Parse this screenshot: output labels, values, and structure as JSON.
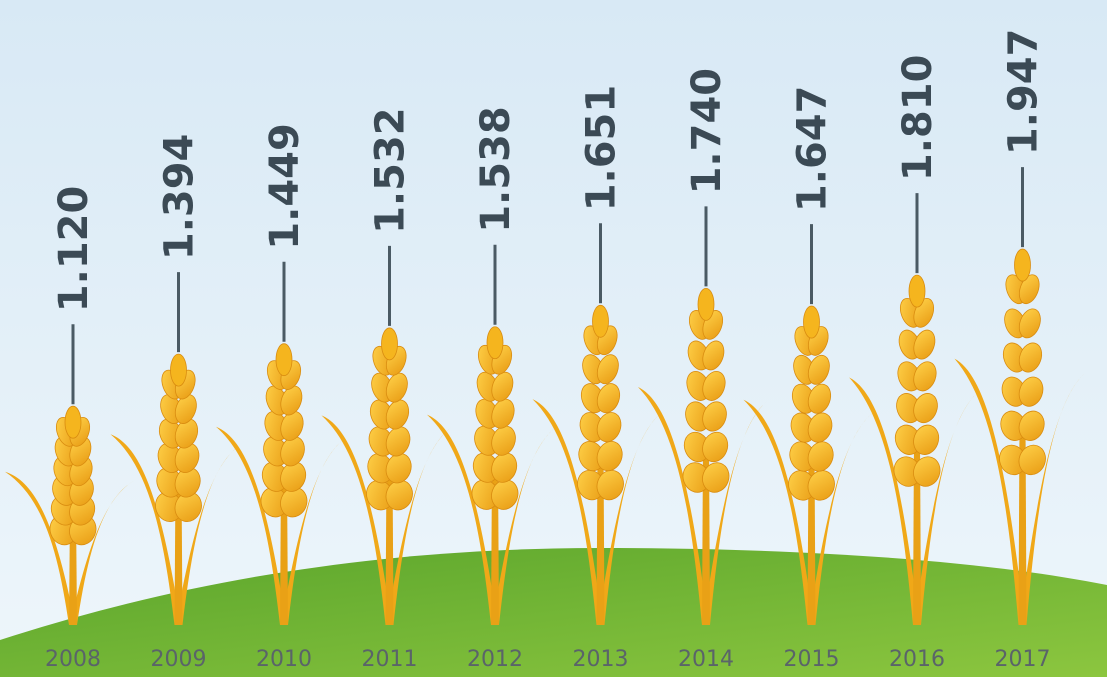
{
  "chart_data": {
    "type": "wheat",
    "categories": [
      "2008",
      "2009",
      "2010",
      "2011",
      "2012",
      "2013",
      "2014",
      "2015",
      "2016",
      "2017"
    ],
    "values": [
      1.12,
      1.394,
      1.449,
      1.532,
      1.538,
      1.651,
      1.74,
      1.647,
      1.81,
      1.947
    ],
    "value_labels": [
      "1.120",
      "1.394",
      "1.449",
      "1.532",
      "1.538",
      "1.651",
      "1.740",
      "1.647",
      "1.810",
      "1.947"
    ],
    "color": "#f5b51e"
  }
}
